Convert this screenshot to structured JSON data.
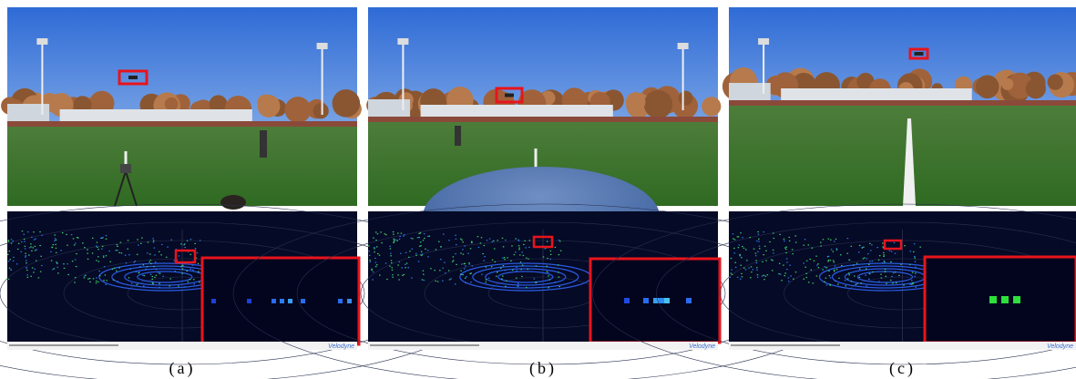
{
  "panels": [
    {
      "caption": "(a)",
      "lidar_brand": "Velodyne"
    },
    {
      "caption": "(b)",
      "lidar_brand": "Velodyne"
    },
    {
      "caption": "(c)",
      "lidar_brand": "Velodyne"
    }
  ]
}
